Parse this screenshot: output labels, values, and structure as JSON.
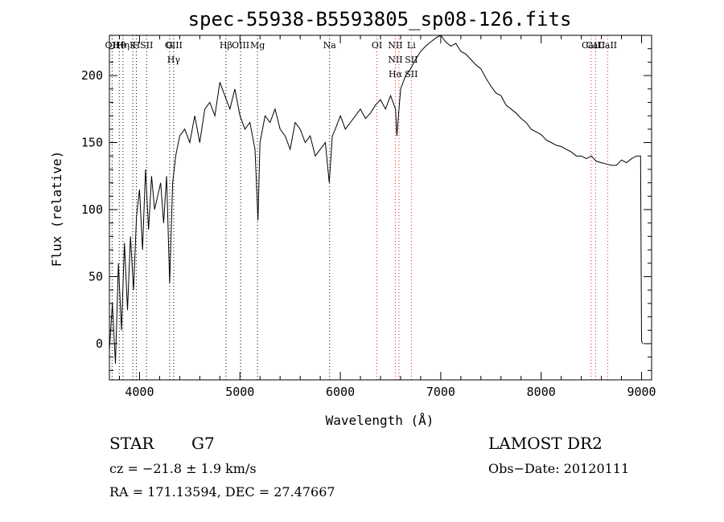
{
  "chart_data": {
    "type": "line",
    "title": "spec-55938-B5593805_sp08-126.fits",
    "xlabel": "Wavelength (Å)",
    "ylabel": "Flux (relative)",
    "xlim": [
      3700,
      9100
    ],
    "ylim": [
      -27,
      230
    ],
    "xticks": [
      4000,
      5000,
      6000,
      7000,
      8000,
      9000
    ],
    "yticks": [
      0,
      50,
      100,
      150,
      200
    ],
    "grid": false,
    "series": [
      {
        "color": "#000000",
        "x": [
          3700,
          3730,
          3760,
          3790,
          3820,
          3850,
          3880,
          3910,
          3940,
          3970,
          4000,
          4030,
          4060,
          4090,
          4120,
          4150,
          4180,
          4210,
          4240,
          4270,
          4300,
          4330,
          4360,
          4400,
          4450,
          4500,
          4550,
          4600,
          4650,
          4700,
          4750,
          4800,
          4850,
          4900,
          4950,
          5000,
          5050,
          5100,
          5150,
          5180,
          5200,
          5250,
          5300,
          5350,
          5400,
          5450,
          5500,
          5550,
          5600,
          5650,
          5700,
          5750,
          5800,
          5850,
          5890,
          5920,
          5950,
          6000,
          6050,
          6100,
          6150,
          6200,
          6250,
          6300,
          6350,
          6400,
          6450,
          6500,
          6550,
          6563,
          6600,
          6650,
          6700,
          6750,
          6800,
          6850,
          6900,
          6950,
          7000,
          7050,
          7100,
          7150,
          7200,
          7250,
          7300,
          7350,
          7400,
          7450,
          7500,
          7550,
          7600,
          7650,
          7700,
          7750,
          7800,
          7850,
          7900,
          7950,
          8000,
          8050,
          8100,
          8150,
          8200,
          8250,
          8300,
          8350,
          8400,
          8450,
          8500,
          8550,
          8600,
          8650,
          8700,
          8750,
          8800,
          8850,
          8900,
          8950,
          8990,
          9000,
          9010
        ],
        "y": [
          -5,
          30,
          -15,
          60,
          10,
          75,
          25,
          80,
          40,
          95,
          115,
          70,
          130,
          85,
          125,
          100,
          110,
          120,
          90,
          125,
          45,
          120,
          140,
          155,
          160,
          150,
          170,
          150,
          175,
          180,
          170,
          195,
          185,
          175,
          190,
          170,
          160,
          165,
          145,
          92,
          150,
          170,
          165,
          175,
          160,
          155,
          145,
          165,
          160,
          150,
          155,
          140,
          145,
          150,
          120,
          155,
          160,
          170,
          160,
          165,
          170,
          175,
          168,
          172,
          178,
          182,
          175,
          185,
          175,
          155,
          190,
          200,
          205,
          212,
          218,
          222,
          225,
          228,
          230,
          225,
          222,
          224,
          218,
          216,
          212,
          208,
          205,
          198,
          192,
          187,
          185,
          178,
          175,
          172,
          168,
          165,
          160,
          158,
          156,
          152,
          150,
          148,
          147,
          145,
          143,
          140,
          140,
          138,
          140,
          136,
          135,
          134,
          133,
          133,
          137,
          135,
          138,
          140,
          140,
          2,
          0
        ]
      }
    ],
    "annotations": {
      "lines": [
        {
          "x": 3727,
          "color": "#000000",
          "labels": [
            "OII"
          ]
        },
        {
          "x": 3798,
          "color": "#000000",
          "labels": [
            "Hθ"
          ]
        },
        {
          "x": 3835,
          "color": "#000000",
          "labels": [
            "Hη"
          ]
        },
        {
          "x": 3933,
          "color": "#000000",
          "labels": [
            "K"
          ]
        },
        {
          "x": 3968,
          "color": "#000000",
          "labels": [
            "H"
          ]
        },
        {
          "x": 4070,
          "color": "#000000",
          "labels": [
            "SII"
          ]
        },
        {
          "x": 4300,
          "color": "#000000",
          "labels": [
            "G"
          ]
        },
        {
          "x": 4340,
          "color": "#000000",
          "labels": [
            "OIII",
            "Hγ"
          ]
        },
        {
          "x": 4861,
          "color": "#000000",
          "labels": [
            "Hβ"
          ]
        },
        {
          "x": 5007,
          "color": "#000000",
          "labels": [
            "OIII"
          ]
        },
        {
          "x": 5175,
          "color": "#000000",
          "labels": [
            "Mg"
          ]
        },
        {
          "x": 5893,
          "color": "#000000",
          "labels": [
            "Na"
          ]
        },
        {
          "x": 6364,
          "color": "#e02020",
          "labels": [
            "OI"
          ]
        },
        {
          "x": 6548,
          "color": "#e02020",
          "labels": [
            "NII",
            "NII",
            "Hα"
          ]
        },
        {
          "x": 6584,
          "color": "#e02020",
          "labels": []
        },
        {
          "x": 6707,
          "color": "#e02020",
          "labels": [
            "Li",
            "SII",
            "SII"
          ]
        },
        {
          "x": 8498,
          "color": "#e02020",
          "labels": [
            "CaII"
          ]
        },
        {
          "x": 8542,
          "color": "#e02020",
          "labels": [
            "CaII"
          ]
        },
        {
          "x": 8662,
          "color": "#e02020",
          "labels": [
            "CaII"
          ]
        }
      ]
    }
  },
  "footer": {
    "object_class": "STAR",
    "subclass": "G7",
    "survey": "LAMOST DR2",
    "cz": "cz = −21.8 ± 1.9 km/s",
    "obs_date": "Obs−Date: 20120111",
    "coords": "RA = 171.13594, DEC =  27.47667"
  }
}
